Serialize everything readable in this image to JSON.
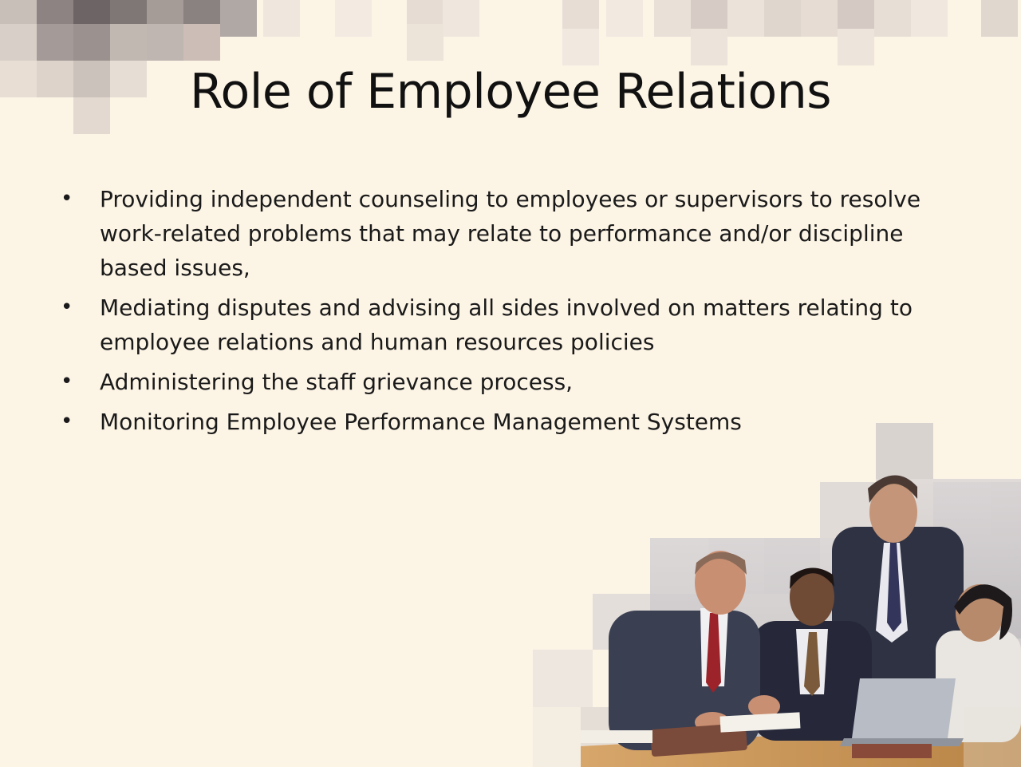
{
  "slide": {
    "title": "Role of Employee Relations",
    "bullets": [
      "Providing independent counseling to employees or supervisors to resolve work-related problems that may relate to performance and/or discipline based issues,",
      "Mediating disputes and advising all sides involved on matters relating to employee relations and human resources policies",
      "Administering the staff grievance process,",
      "Monitoring Employee Performance Management Systems"
    ],
    "bullet_symbol": "•"
  },
  "colors": {
    "background": "#fcf4e5",
    "text": "#111111",
    "mosaic_dark": "#7d7471",
    "mosaic_light": "#d9d2cd"
  },
  "icons": {
    "photo": "business-team-photo"
  }
}
